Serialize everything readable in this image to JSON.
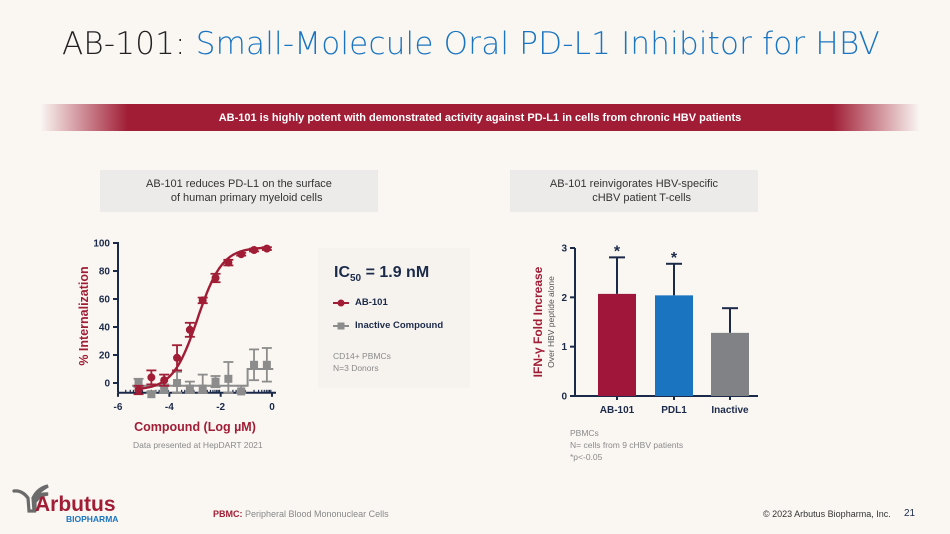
{
  "slide": {
    "title_prefix": "AB-101:",
    "title_accent": " Small-Molecule Oral PD-L1 Inhibitor for HBV",
    "banner": "AB-101 is highly potent with demonstrated activity against PD-L1 in cells from chronic HBV patients",
    "page_number": "21",
    "copyright": "© 2023 Arbutus Biopharma, Inc.",
    "footnote_label": "PBMC:",
    "footnote_text": " Peripheral Blood Mononuclear Cells",
    "logo": {
      "name": "Arbutus",
      "sub": "BIOPHARMA",
      "icon": "tree-icon"
    }
  },
  "colors": {
    "accent_red": "#a01d35",
    "accent_blue": "#1a74c0",
    "navy": "#1c2a4a",
    "gray": "#8a8a8a"
  },
  "left_panel": {
    "heading": "AB-101 reduces PD-L1 on the surface\n     of human primary myeloid cells",
    "ic50_label": "IC",
    "ic50_sub": "50",
    "ic50_value": " = 1.9 nM",
    "legend": [
      "AB-101",
      "Inactive Compound"
    ],
    "note": "CD14+ PBMCs\nN=3 Donors",
    "source": "Data presented at HepDART 2021"
  },
  "right_panel": {
    "heading": "AB-101 reinvigorates HBV-specific\n     cHBV patient T-cells",
    "note": "PBMCs\nN= cells from 9 cHBV patients\n*p<-0.05"
  },
  "chart_data": [
    {
      "type": "scatter",
      "title": "",
      "xlabel": "Compound (Log µM)",
      "ylabel": "% Internalization",
      "xlim": [
        -6,
        0
      ],
      "ylim": [
        -7,
        100
      ],
      "xticks": [
        "-6",
        "-4",
        "-2",
        "0"
      ],
      "yticks": [
        "0",
        "20",
        "40",
        "60",
        "80",
        "100"
      ],
      "series": [
        {
          "name": "AB-101",
          "color": "#a01d35",
          "marker": "circle",
          "fit": "sigmoid",
          "x": [
            -5.2,
            -4.7,
            -4.2,
            -3.7,
            -3.2,
            -2.7,
            -2.2,
            -1.7,
            -1.2,
            -0.7,
            -0.2
          ],
          "y": [
            -5,
            4,
            2,
            18,
            38,
            59,
            75,
            86,
            92,
            95,
            96
          ],
          "err": [
            3,
            5,
            4,
            9,
            5,
            2,
            3,
            2,
            1,
            1,
            1
          ]
        },
        {
          "name": "Inactive Compound",
          "color": "#8c8c8c",
          "marker": "square",
          "fit": "step",
          "x": [
            -5.2,
            -4.7,
            -4.2,
            -3.7,
            -3.2,
            -2.7,
            -2.2,
            -1.7,
            -1.2,
            -0.7,
            -0.2
          ],
          "y": [
            0,
            -8,
            -4,
            0,
            -4,
            -4,
            1,
            3,
            -6,
            13,
            13
          ],
          "err": [
            3,
            2,
            3,
            8,
            5,
            10,
            4,
            12,
            4,
            11,
            12
          ]
        }
      ]
    },
    {
      "type": "bar",
      "title": "",
      "xlabel": "",
      "ylabel": "IFN-γ Fold Increase",
      "ylabel_sub": "Over HBV peptide alone",
      "categories": [
        "AB-101",
        "PDL1",
        "Inactive"
      ],
      "values": [
        2.07,
        2.04,
        1.28
      ],
      "err": [
        0.74,
        0.64,
        0.5
      ],
      "colors": [
        "#a0163a",
        "#1a74c0",
        "#808285"
      ],
      "significance": [
        "*",
        "*",
        ""
      ],
      "ylim": [
        0,
        3
      ],
      "yticks": [
        "0",
        "1",
        "2",
        "3"
      ]
    }
  ]
}
